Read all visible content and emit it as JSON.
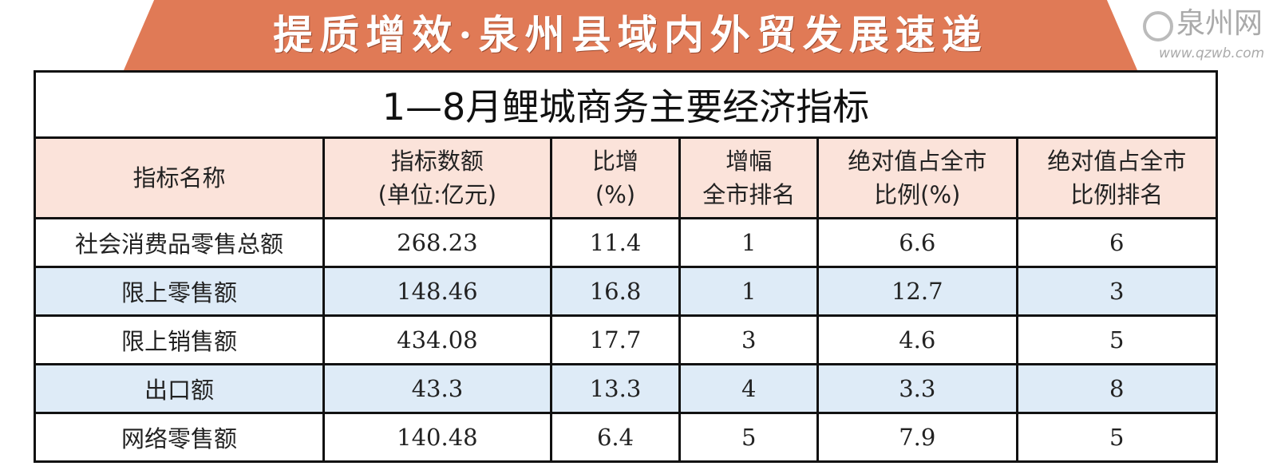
{
  "banner": {
    "text": "提质增效·泉州县域内外贸发展速递",
    "color": "#e07a56"
  },
  "table": {
    "title": "1—8月鲤城商务主要经济指标",
    "headers": [
      [
        "指标名称"
      ],
      [
        "指标数额",
        "(单位:亿元)"
      ],
      [
        "比增",
        "(%)"
      ],
      [
        "增幅",
        "全市排名"
      ],
      [
        "绝对值占全市",
        "比例(%)"
      ],
      [
        "绝对值占全市",
        "比例排名"
      ]
    ],
    "rows": [
      [
        "社会消费品零售总额",
        "268.23",
        "11.4",
        "1",
        "6.6",
        "6"
      ],
      [
        "限上零售额",
        "148.46",
        "16.8",
        "1",
        "12.7",
        "3"
      ],
      [
        "限上销售额",
        "434.08",
        "17.7",
        "3",
        "4.6",
        "5"
      ],
      [
        "出口额",
        "43.3",
        "13.3",
        "4",
        "3.3",
        "8"
      ],
      [
        "网络零售额",
        "140.48",
        "6.4",
        "5",
        "7.9",
        "5"
      ]
    ],
    "header_color": "#fbe3da",
    "alt_row_color": "#deebf7"
  },
  "watermark": {
    "name": "泉州网",
    "url": "www.qzwb.com"
  }
}
